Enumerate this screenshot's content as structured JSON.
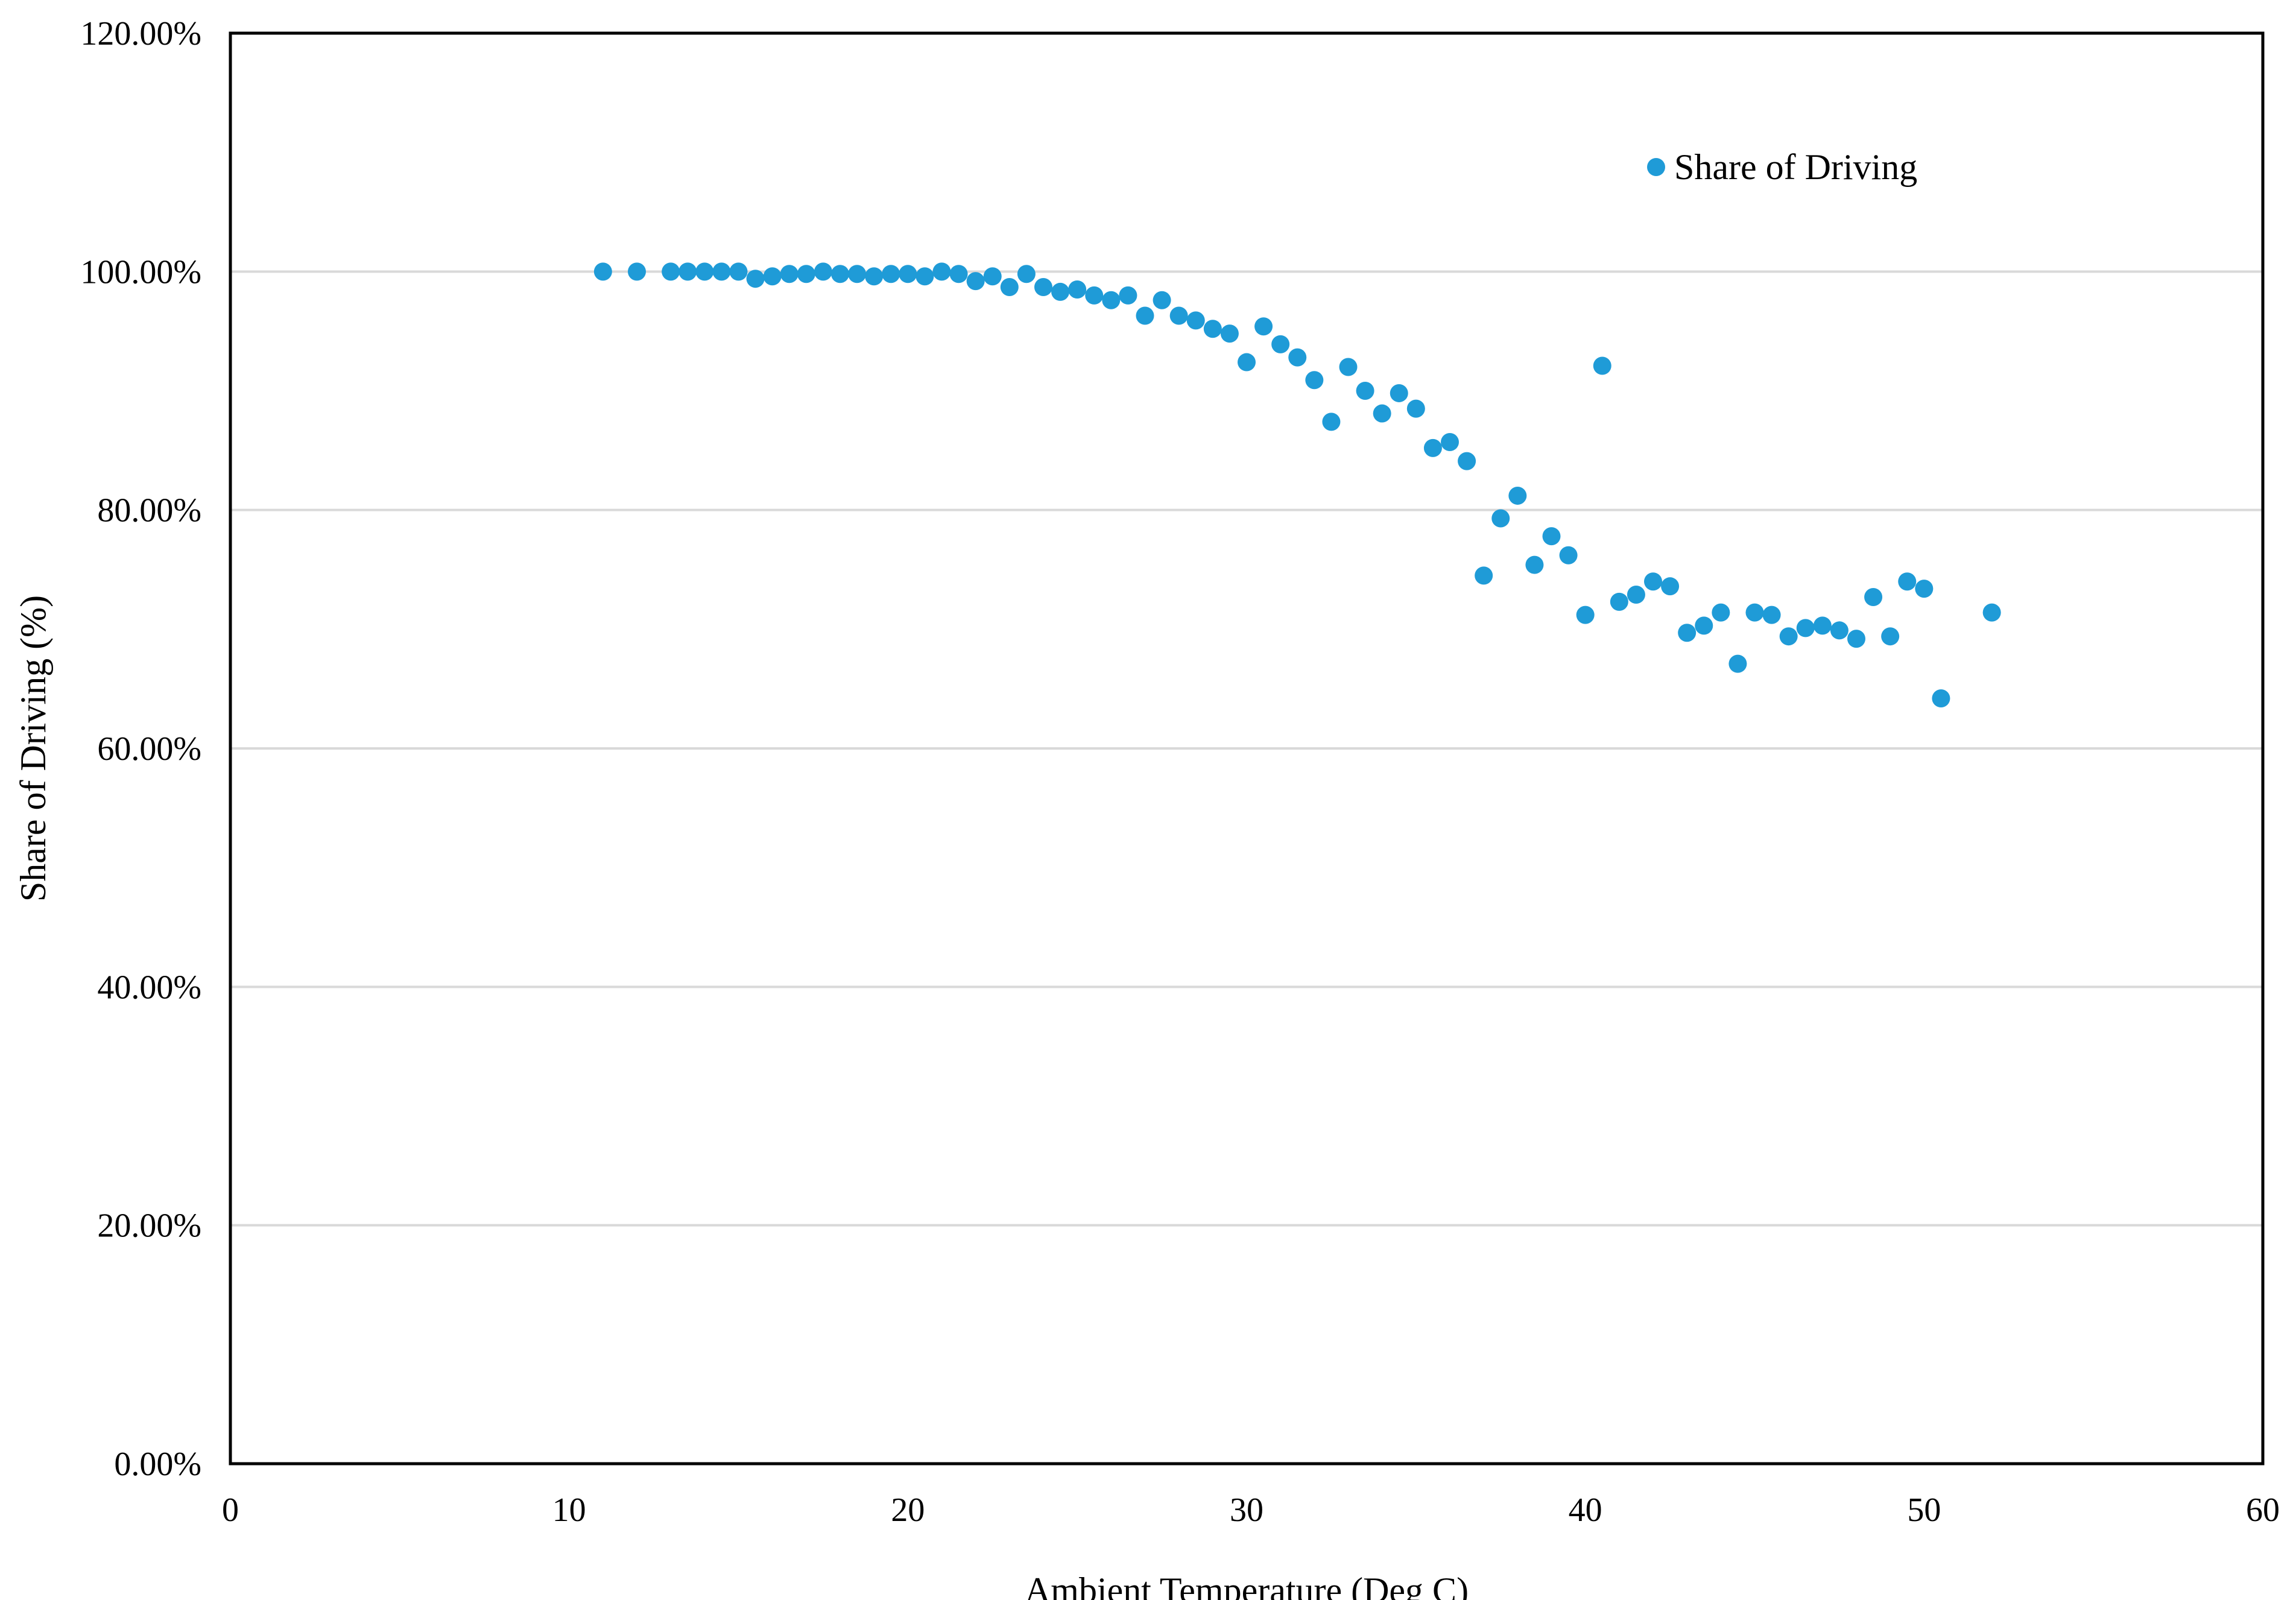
{
  "chart_data": {
    "type": "scatter",
    "xlabel": "Ambient Temperature (Deg C)",
    "ylabel": "Share of Driving (%)",
    "xlim": [
      0,
      60
    ],
    "ylim": [
      0,
      1.2
    ],
    "x_ticks": [
      0,
      10,
      20,
      30,
      40,
      50,
      60
    ],
    "x_tick_labels": [
      "0",
      "10",
      "20",
      "30",
      "40",
      "50",
      "60"
    ],
    "y_ticks": [
      0,
      0.2,
      0.4,
      0.6,
      0.8,
      1.0,
      1.2
    ],
    "y_tick_labels": [
      "0.00%",
      "20.00%",
      "40.00%",
      "60.00%",
      "80.00%",
      "100.00%",
      "120.00%"
    ],
    "grid": "horizontal",
    "legend_position": "top-right",
    "series": [
      {
        "name": "Share of Driving",
        "color": "#1f9bd7",
        "points": [
          [
            11,
            1.0
          ],
          [
            12,
            1.0
          ],
          [
            13,
            1.0
          ],
          [
            13.5,
            1.0
          ],
          [
            14,
            1.0
          ],
          [
            14.5,
            1.0
          ],
          [
            15,
            1.0
          ],
          [
            15.5,
            0.994
          ],
          [
            16,
            0.996
          ],
          [
            16.5,
            0.998
          ],
          [
            17,
            0.998
          ],
          [
            17.5,
            1.0
          ],
          [
            18,
            0.998
          ],
          [
            18.5,
            0.998
          ],
          [
            19,
            0.996
          ],
          [
            19.5,
            0.998
          ],
          [
            20,
            0.998
          ],
          [
            20.5,
            0.996
          ],
          [
            21,
            1.0
          ],
          [
            21.5,
            0.998
          ],
          [
            22,
            0.992
          ],
          [
            22.5,
            0.996
          ],
          [
            23,
            0.987
          ],
          [
            23.5,
            0.998
          ],
          [
            24,
            0.987
          ],
          [
            24.5,
            0.983
          ],
          [
            25,
            0.985
          ],
          [
            25.5,
            0.98
          ],
          [
            26,
            0.976
          ],
          [
            26.5,
            0.98
          ],
          [
            27,
            0.963
          ],
          [
            27.5,
            0.976
          ],
          [
            28,
            0.963
          ],
          [
            28.5,
            0.959
          ],
          [
            29,
            0.952
          ],
          [
            29.5,
            0.948
          ],
          [
            30,
            0.924
          ],
          [
            30.5,
            0.954
          ],
          [
            31,
            0.939
          ],
          [
            31.5,
            0.928
          ],
          [
            32,
            0.909
          ],
          [
            32.5,
            0.874
          ],
          [
            33,
            0.92
          ],
          [
            33.5,
            0.9
          ],
          [
            34,
            0.881
          ],
          [
            34.5,
            0.898
          ],
          [
            35,
            0.885
          ],
          [
            35.5,
            0.852
          ],
          [
            36,
            0.857
          ],
          [
            36.5,
            0.841
          ],
          [
            37,
            0.745
          ],
          [
            37.5,
            0.793
          ],
          [
            38,
            0.812
          ],
          [
            38.5,
            0.754
          ],
          [
            39,
            0.778
          ],
          [
            39.5,
            0.762
          ],
          [
            40,
            0.712
          ],
          [
            40.5,
            0.921
          ],
          [
            41,
            0.723
          ],
          [
            41.5,
            0.729
          ],
          [
            42,
            0.74
          ],
          [
            42.5,
            0.736
          ],
          [
            43,
            0.697
          ],
          [
            43.5,
            0.703
          ],
          [
            44,
            0.714
          ],
          [
            44.5,
            0.671
          ],
          [
            45,
            0.714
          ],
          [
            45.5,
            0.712
          ],
          [
            46,
            0.694
          ],
          [
            46.5,
            0.701
          ],
          [
            47,
            0.703
          ],
          [
            47.5,
            0.699
          ],
          [
            48,
            0.692
          ],
          [
            48.5,
            0.727
          ],
          [
            49,
            0.694
          ],
          [
            49.5,
            0.74
          ],
          [
            50,
            0.734
          ],
          [
            50.5,
            0.642
          ],
          [
            52,
            0.714
          ]
        ]
      }
    ]
  }
}
